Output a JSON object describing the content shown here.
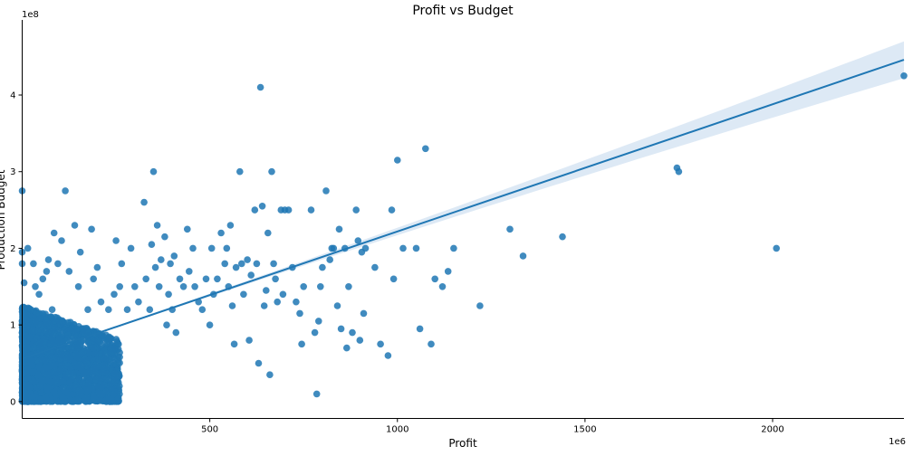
{
  "chart_data": {
    "type": "scatter",
    "title": "Profit vs Budget",
    "xlabel": "Profit",
    "ylabel": "Production Budget",
    "x_offset_label": "1e6",
    "y_offset_label": "1e8",
    "xlim": [
      0,
      2350
    ],
    "ylim": [
      -0.22,
      4.98
    ],
    "x_ticks": [
      500,
      1000,
      1500,
      2000
    ],
    "y_ticks": [
      0,
      1,
      2,
      3,
      4
    ],
    "grid": false,
    "legend": "none",
    "point_color": "#1f77b4",
    "regression": {
      "x": [
        0,
        2350
      ],
      "y": [
        0.56,
        4.46
      ],
      "line_color": "#1f77b4",
      "band_color": "#c6dbef",
      "band_halfwidth_at_ends": [
        0.02,
        0.24
      ],
      "band_halfwidth_min": 0.01,
      "band_min_at_x": 60
    },
    "points": [
      [
        0,
        2.75
      ],
      [
        0,
        1.8
      ],
      [
        0,
        1.95
      ],
      [
        5,
        1.55
      ],
      [
        15,
        2.0
      ],
      [
        30,
        1.8
      ],
      [
        35,
        1.5
      ],
      [
        45,
        1.4
      ],
      [
        55,
        1.6
      ],
      [
        65,
        1.7
      ],
      [
        70,
        1.85
      ],
      [
        80,
        1.2
      ],
      [
        85,
        2.2
      ],
      [
        95,
        1.8
      ],
      [
        105,
        2.1
      ],
      [
        115,
        2.75
      ],
      [
        125,
        1.7
      ],
      [
        140,
        2.3
      ],
      [
        150,
        1.5
      ],
      [
        155,
        1.95
      ],
      [
        175,
        1.2
      ],
      [
        185,
        2.25
      ],
      [
        190,
        1.6
      ],
      [
        200,
        1.75
      ],
      [
        210,
        1.3
      ],
      [
        230,
        1.2
      ],
      [
        245,
        1.4
      ],
      [
        250,
        2.1
      ],
      [
        260,
        1.5
      ],
      [
        265,
        1.8
      ],
      [
        280,
        1.2
      ],
      [
        290,
        2.0
      ],
      [
        300,
        1.5
      ],
      [
        310,
        1.3
      ],
      [
        325,
        2.6
      ],
      [
        330,
        1.6
      ],
      [
        340,
        1.2
      ],
      [
        345,
        2.05
      ],
      [
        350,
        3.0
      ],
      [
        355,
        1.75
      ],
      [
        360,
        2.3
      ],
      [
        365,
        1.5
      ],
      [
        370,
        1.85
      ],
      [
        380,
        2.15
      ],
      [
        385,
        1.0
      ],
      [
        390,
        1.4
      ],
      [
        395,
        1.8
      ],
      [
        400,
        1.2
      ],
      [
        405,
        1.9
      ],
      [
        410,
        0.9
      ],
      [
        420,
        1.6
      ],
      [
        430,
        1.5
      ],
      [
        440,
        2.25
      ],
      [
        445,
        1.7
      ],
      [
        455,
        2.0
      ],
      [
        460,
        1.5
      ],
      [
        470,
        1.3
      ],
      [
        480,
        1.2
      ],
      [
        490,
        1.6
      ],
      [
        500,
        1.0
      ],
      [
        505,
        2.0
      ],
      [
        510,
        1.4
      ],
      [
        520,
        1.6
      ],
      [
        530,
        2.2
      ],
      [
        540,
        1.8
      ],
      [
        545,
        2.0
      ],
      [
        550,
        1.5
      ],
      [
        555,
        2.3
      ],
      [
        560,
        1.25
      ],
      [
        565,
        0.75
      ],
      [
        570,
        1.75
      ],
      [
        580,
        3.0
      ],
      [
        585,
        1.8
      ],
      [
        590,
        1.4
      ],
      [
        600,
        1.85
      ],
      [
        605,
        0.8
      ],
      [
        610,
        1.65
      ],
      [
        620,
        2.5
      ],
      [
        625,
        1.8
      ],
      [
        630,
        0.5
      ],
      [
        635,
        4.1
      ],
      [
        640,
        2.55
      ],
      [
        645,
        1.25
      ],
      [
        650,
        1.45
      ],
      [
        655,
        2.2
      ],
      [
        660,
        0.35
      ],
      [
        665,
        3.0
      ],
      [
        670,
        1.8
      ],
      [
        675,
        1.6
      ],
      [
        680,
        1.3
      ],
      [
        690,
        2.5
      ],
      [
        695,
        1.4
      ],
      [
        700,
        2.5
      ],
      [
        710,
        2.5
      ],
      [
        720,
        1.75
      ],
      [
        730,
        1.3
      ],
      [
        740,
        1.15
      ],
      [
        745,
        0.75
      ],
      [
        750,
        1.5
      ],
      [
        770,
        2.5
      ],
      [
        780,
        0.9
      ],
      [
        785,
        0.1
      ],
      [
        790,
        1.05
      ],
      [
        795,
        1.5
      ],
      [
        800,
        1.75
      ],
      [
        810,
        2.75
      ],
      [
        820,
        1.85
      ],
      [
        825,
        2.0
      ],
      [
        830,
        2.0
      ],
      [
        840,
        1.25
      ],
      [
        845,
        2.25
      ],
      [
        850,
        0.95
      ],
      [
        860,
        2.0
      ],
      [
        865,
        0.7
      ],
      [
        870,
        1.5
      ],
      [
        880,
        0.9
      ],
      [
        890,
        2.5
      ],
      [
        895,
        2.1
      ],
      [
        900,
        0.8
      ],
      [
        905,
        1.95
      ],
      [
        910,
        1.15
      ],
      [
        915,
        2.0
      ],
      [
        940,
        1.75
      ],
      [
        955,
        0.75
      ],
      [
        975,
        0.6
      ],
      [
        985,
        2.5
      ],
      [
        990,
        1.6
      ],
      [
        1000,
        3.15
      ],
      [
        1015,
        2.0
      ],
      [
        1050,
        2.0
      ],
      [
        1060,
        0.95
      ],
      [
        1075,
        3.3
      ],
      [
        1090,
        0.75
      ],
      [
        1100,
        1.6
      ],
      [
        1120,
        1.5
      ],
      [
        1135,
        1.7
      ],
      [
        1150,
        2.0
      ],
      [
        1220,
        1.25
      ],
      [
        1300,
        2.25
      ],
      [
        1335,
        1.9
      ],
      [
        1440,
        2.15
      ],
      [
        1745,
        3.05
      ],
      [
        1750,
        3.0
      ],
      [
        2010,
        2.0
      ],
      [
        2350,
        4.25
      ]
    ]
  }
}
